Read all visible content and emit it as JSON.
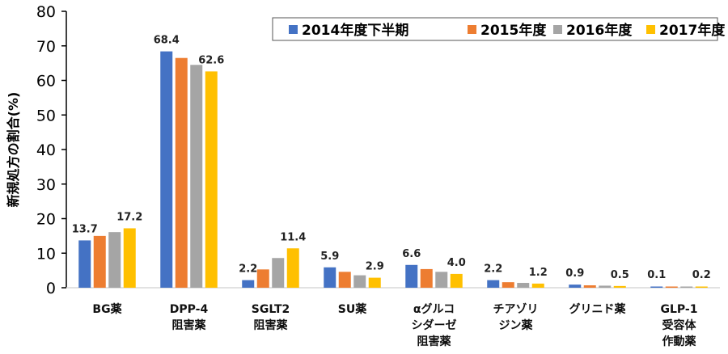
{
  "chart_data": {
    "type": "bar",
    "title": "",
    "xlabel": "",
    "ylabel": "新規処方の割合(%)",
    "ylim": [
      0,
      80
    ],
    "yticks": [
      0,
      10,
      20,
      30,
      40,
      50,
      60,
      70,
      80
    ],
    "grid": false,
    "legend_position": "top-right",
    "categories": [
      [
        "BG薬"
      ],
      [
        "DPP-4",
        "阻害薬"
      ],
      [
        "SGLT2",
        "阻害薬"
      ],
      [
        "SU薬"
      ],
      [
        "αグルコ",
        "シダーゼ",
        "阻害薬"
      ],
      [
        "チアゾリ",
        "ジン薬"
      ],
      [
        "グリニド薬"
      ],
      [
        "GLP-1",
        "受容体",
        "作動薬"
      ]
    ],
    "series": [
      {
        "name": "2014年度下半期",
        "color": "#4472C4",
        "values": [
          13.7,
          68.4,
          2.2,
          5.9,
          6.6,
          2.2,
          0.9,
          0.1
        ],
        "labels": [
          "13.7",
          "68.4",
          "2.2",
          "5.9",
          "6.6",
          "2.2",
          "0.9",
          "0.1"
        ]
      },
      {
        "name": "2015年度",
        "color": "#ED7D31",
        "values": [
          15.0,
          66.5,
          5.3,
          4.6,
          5.4,
          1.6,
          0.7,
          0.05
        ],
        "labels": [
          "",
          "",
          "",
          "",
          "",
          "",
          "",
          ""
        ]
      },
      {
        "name": "2016年度",
        "color": "#A5A5A5",
        "values": [
          16.1,
          64.5,
          8.6,
          3.6,
          4.6,
          1.4,
          0.6,
          0.15
        ],
        "labels": [
          "",
          "",
          "",
          "",
          "",
          "",
          "",
          ""
        ]
      },
      {
        "name": "2017年度",
        "color": "#FFC000",
        "values": [
          17.2,
          62.6,
          11.4,
          2.9,
          4.0,
          1.2,
          0.5,
          0.2
        ],
        "labels": [
          "17.2",
          "62.6",
          "11.4",
          "2.9",
          "4.0",
          "1.2",
          "0.5",
          "0.2"
        ]
      }
    ]
  }
}
